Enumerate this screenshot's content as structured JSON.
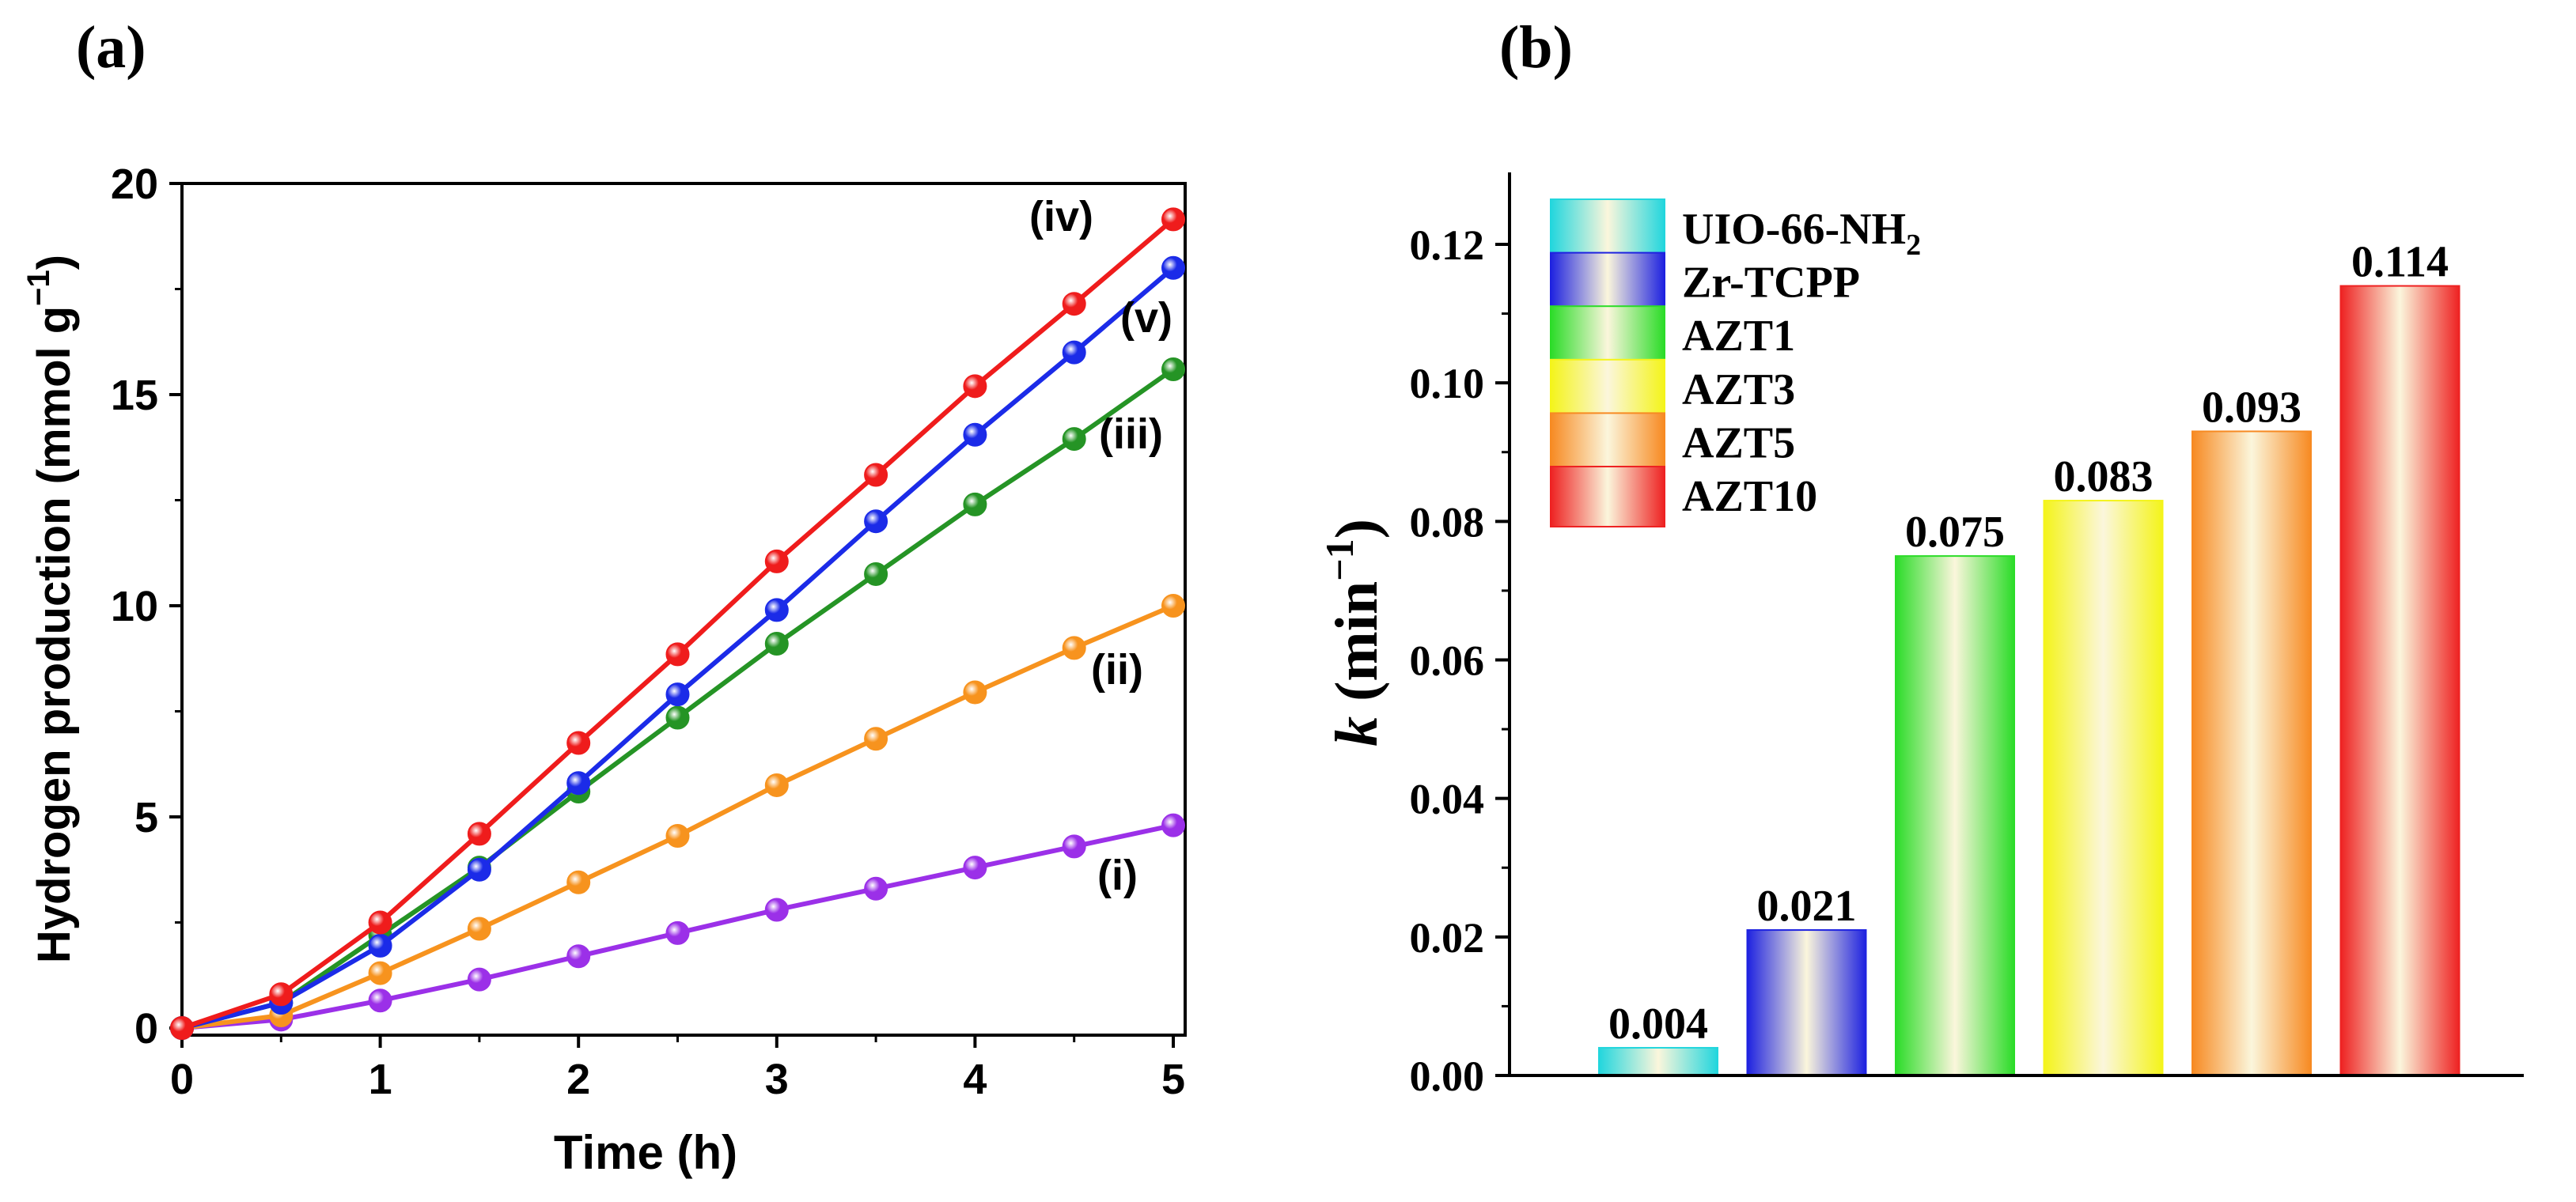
{
  "chart_data": [
    {
      "panel_label": "(a)",
      "type": "line",
      "xlabel": "Time (h)",
      "ylabel_main": "Hydrogen production (mmol g",
      "ylabel_sup": "−1",
      "ylabel_close": ")",
      "xlim": [
        0,
        5
      ],
      "ylim": [
        0,
        20
      ],
      "xticks": [
        "0",
        "1",
        "2",
        "3",
        "4",
        "5"
      ],
      "yticks": [
        "0",
        "5",
        "10",
        "15",
        "20"
      ],
      "x": [
        0,
        0.5,
        1,
        1.5,
        2,
        2.5,
        3,
        3.5,
        4,
        4.5,
        5
      ],
      "series": [
        {
          "name": "(i)",
          "color": "#9b30e8",
          "values": [
            0,
            0.2,
            0.65,
            1.15,
            1.7,
            2.25,
            2.8,
            3.3,
            3.8,
            4.3,
            4.8
          ]
        },
        {
          "name": "(ii)",
          "color": "#f7931e",
          "values": [
            0,
            0.3,
            1.3,
            2.35,
            3.45,
            4.55,
            5.75,
            6.85,
            7.95,
            9.0,
            10.0
          ]
        },
        {
          "name": "(iii)",
          "color": "#259425",
          "values": [
            0,
            0.6,
            2.2,
            3.8,
            5.6,
            7.35,
            9.1,
            10.75,
            12.4,
            13.95,
            15.6
          ]
        },
        {
          "name": "(v)",
          "color": "#1b2be8",
          "values": [
            0,
            0.6,
            1.95,
            3.75,
            5.8,
            7.9,
            9.9,
            12.0,
            14.05,
            16.0,
            18.0
          ]
        },
        {
          "name": "(iv)",
          "color": "#ef1c1c",
          "values": [
            0,
            0.8,
            2.5,
            4.6,
            6.75,
            8.85,
            11.05,
            13.1,
            15.2,
            17.15,
            19.15
          ]
        }
      ]
    },
    {
      "panel_label": "(b)",
      "type": "bar",
      "ylabel_var": "k",
      "ylabel_unit": "(min",
      "ylabel_sup": "−1",
      "ylabel_close": ")",
      "ylim": [
        0,
        0.13
      ],
      "yticks": [
        "0.00",
        "0.02",
        "0.04",
        "0.06",
        "0.08",
        "0.10",
        "0.12"
      ],
      "categories": [
        "UIO-66-NH2",
        "Zr-TCPP",
        "AZT1",
        "AZT3",
        "AZT5",
        "AZT10"
      ],
      "values": [
        0.004,
        0.021,
        0.075,
        0.083,
        0.093,
        0.114
      ],
      "value_labels": [
        "0.004",
        "0.021",
        "0.075",
        "0.083",
        "0.093",
        "0.114"
      ],
      "colors": [
        "#22d6dd",
        "#1e22e0",
        "#2bdc28",
        "#f4f41a",
        "#f78a22",
        "#ee2222"
      ],
      "legend": [
        {
          "text": "UIO-66-NH",
          "sub": "2"
        },
        {
          "text": "Zr-TCPP",
          "sub": ""
        },
        {
          "text": "AZT1",
          "sub": ""
        },
        {
          "text": "AZT3",
          "sub": ""
        },
        {
          "text": "AZT5",
          "sub": ""
        },
        {
          "text": "AZT10",
          "sub": ""
        }
      ],
      "legend_position": "top-left"
    }
  ]
}
